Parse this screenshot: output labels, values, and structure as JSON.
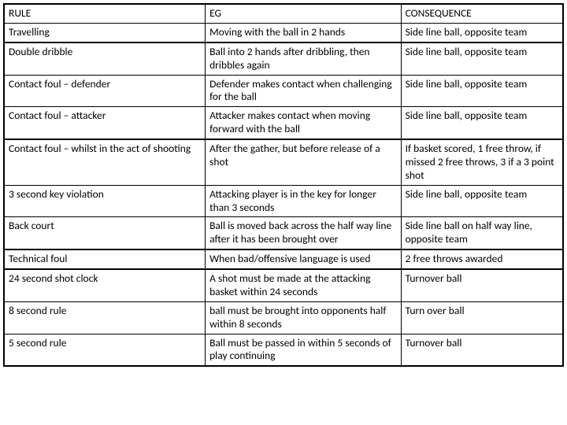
{
  "type": "table",
  "columns": [
    "RULE",
    "EG",
    "CONSEQUENCE"
  ],
  "column_widths_pct": [
    36,
    35,
    29
  ],
  "font_size_pt": 10,
  "border_color": "#000000",
  "background_color": "#ffffff",
  "text_color": "#000000",
  "groups": [
    {
      "rows": [
        [
          "RULE",
          "EG",
          "CONSEQUENCE"
        ],
        [
          "Travelling",
          "Moving with the ball in 2 hands",
          "Side line ball, opposite team"
        ]
      ]
    },
    {
      "rows": [
        [
          "Double dribble",
          "Ball into 2 hands after dribbling, then dribbles again",
          "Side line ball, opposite team"
        ],
        [
          "Contact foul – defender",
          "Defender makes contact when challenging for the ball",
          "Side line ball, opposite team"
        ],
        [
          "Contact foul – attacker",
          "Attacker makes contact when moving forward with the ball",
          "Side line ball, opposite team"
        ]
      ]
    },
    {
      "rows": [
        [
          "Contact foul – whilst in the act of shooting",
          "After the gather, but before release of a shot",
          "If basket scored, 1 free throw, if missed 2 free throws, 3 if a 3 point shot"
        ],
        [
          "3 second key violation",
          "Attacking player is in the key for longer than 3 seconds",
          "Side line ball, opposite team"
        ],
        [
          "Back court",
          "Ball is moved back across the half way line after it has been brought over",
          "Side line ball on half way line, opposite team"
        ]
      ]
    },
    {
      "rows": [
        [
          "Technical foul",
          "When bad/offensive language is used",
          "2 free throws awarded"
        ]
      ]
    },
    {
      "rows": [
        [
          "24 second shot clock",
          "A shot must be made at the attacking basket within 24 seconds",
          "Turnover ball"
        ],
        [
          "8 second rule",
          "ball must be brought into opponents half within 8 seconds",
          "Turn over ball"
        ],
        [
          "5 second rule",
          "Ball must be passed in within 5 seconds of play continuing",
          "Turnover ball"
        ]
      ]
    }
  ]
}
